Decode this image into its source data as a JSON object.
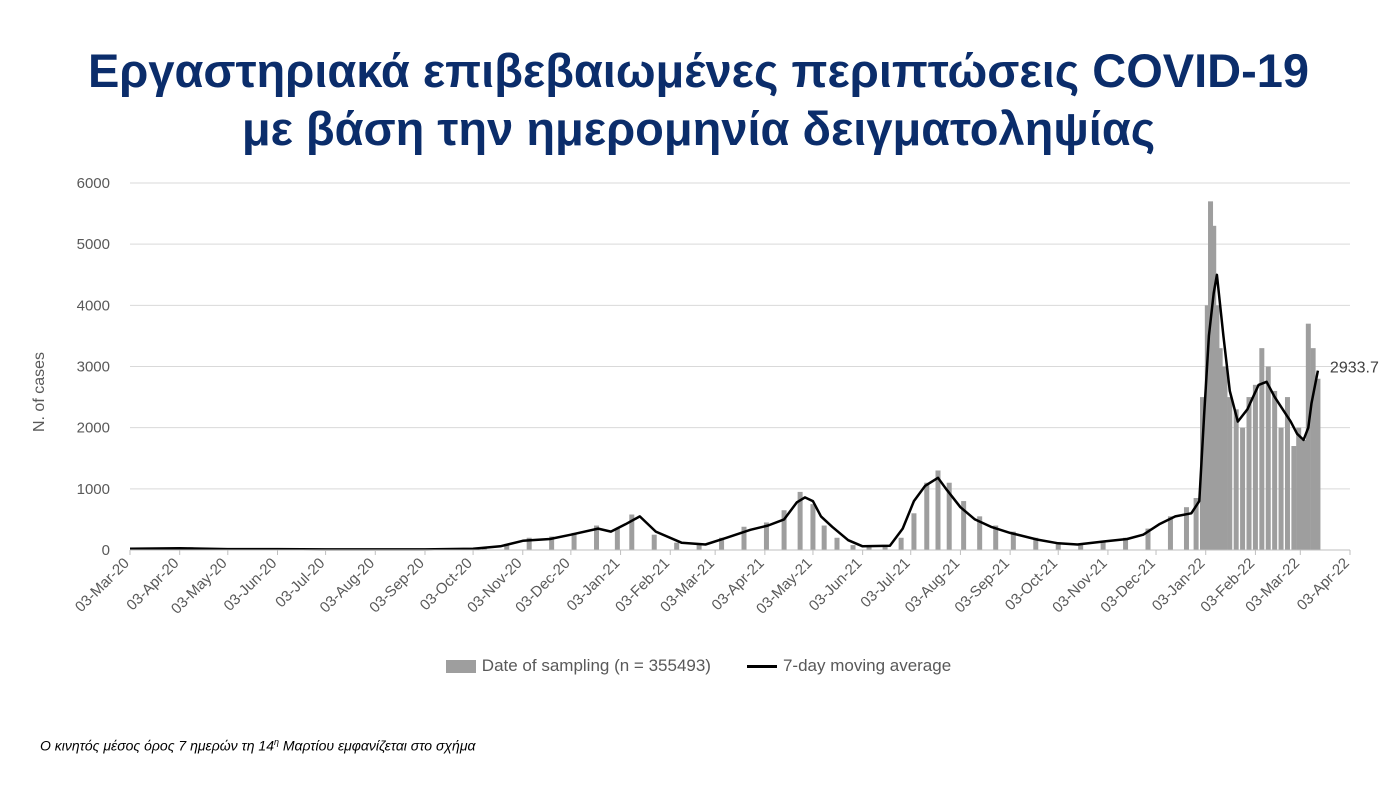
{
  "title": {
    "line1": "Εργαστηριακά επιβεβαιωμένες περιπτώσεις COVID-19",
    "line2": "με βάση την ημερομηνία δειγματοληψίας"
  },
  "footnote": {
    "before": "Ο κινητός μέσος όρος 7 ημερών τη 14",
    "sup": "η",
    "after": " Μαρτίου εμφανίζεται στο σχήμα"
  },
  "colors": {
    "title": "#0b2d6b",
    "bars": "#9e9e9e",
    "line": "#000000",
    "grid": "#d9d9d9"
  },
  "chart_data": {
    "type": "bar",
    "ylabel": "N. of cases",
    "ylim": [
      0,
      6000
    ],
    "yticks": [
      "0",
      "1000",
      "2000",
      "3000",
      "4000",
      "5000",
      "6000"
    ],
    "xlim": [
      "2020-03-03",
      "2022-04-03"
    ],
    "xticks": [
      "03-Mar-20",
      "03-Apr-20",
      "03-May-20",
      "03-Jun-20",
      "03-Jul-20",
      "03-Aug-20",
      "03-Sep-20",
      "03-Oct-20",
      "03-Nov-20",
      "03-Dec-20",
      "03-Jan-21",
      "03-Feb-21",
      "03-Mar-21",
      "03-Apr-21",
      "03-May-21",
      "03-Jun-21",
      "03-Jul-21",
      "03-Aug-21",
      "03-Sep-21",
      "03-Oct-21",
      "03-Nov-21",
      "03-Dec-21",
      "03-Jan-22",
      "03-Feb-22",
      "03-Mar-22",
      "03-Apr-22"
    ],
    "end_label": "2933.7",
    "series": [
      {
        "name": "Date of sampling (n = 355493)",
        "type": "bar",
        "x": [
          "2020-03-10",
          "2020-04-10",
          "2020-05-10",
          "2020-06-10",
          "2020-07-10",
          "2020-08-10",
          "2020-09-10",
          "2020-10-10",
          "2020-10-24",
          "2020-11-07",
          "2020-11-21",
          "2020-12-05",
          "2020-12-19",
          "2021-01-01",
          "2021-01-10",
          "2021-01-24",
          "2021-02-07",
          "2021-02-21",
          "2021-03-07",
          "2021-03-21",
          "2021-04-04",
          "2021-04-15",
          "2021-04-25",
          "2021-05-03",
          "2021-05-10",
          "2021-05-18",
          "2021-05-28",
          "2021-06-07",
          "2021-06-17",
          "2021-06-27",
          "2021-07-05",
          "2021-07-13",
          "2021-07-20",
          "2021-07-27",
          "2021-08-05",
          "2021-08-15",
          "2021-08-25",
          "2021-09-05",
          "2021-09-19",
          "2021-10-03",
          "2021-10-17",
          "2021-10-31",
          "2021-11-14",
          "2021-11-28",
          "2021-12-12",
          "2021-12-22",
          "2021-12-28",
          "2022-01-01",
          "2022-01-04",
          "2022-01-06",
          "2022-01-08",
          "2022-01-10",
          "2022-01-12",
          "2022-01-15",
          "2022-01-18",
          "2022-01-22",
          "2022-01-26",
          "2022-01-30",
          "2022-02-03",
          "2022-02-07",
          "2022-02-11",
          "2022-02-15",
          "2022-02-19",
          "2022-02-23",
          "2022-02-27",
          "2022-03-02",
          "2022-03-05",
          "2022-03-08",
          "2022-03-11",
          "2022-03-14"
        ],
        "values": [
          30,
          45,
          25,
          20,
          15,
          20,
          25,
          30,
          100,
          200,
          220,
          280,
          400,
          350,
          580,
          250,
          120,
          100,
          200,
          380,
          450,
          650,
          950,
          750,
          400,
          200,
          80,
          50,
          50,
          200,
          600,
          1100,
          1300,
          1100,
          800,
          550,
          400,
          300,
          200,
          120,
          90,
          150,
          200,
          350,
          550,
          700,
          850,
          2500,
          4000,
          5700,
          5300,
          4000,
          3300,
          3000,
          2500,
          2300,
          2000,
          2500,
          2700,
          3300,
          3000,
          2600,
          2000,
          2500,
          1700,
          2000,
          1800,
          3700,
          3300,
          2800
        ]
      },
      {
        "name": "7-day moving average",
        "type": "line",
        "x": [
          "2020-03-03",
          "2020-04-03",
          "2020-05-03",
          "2020-06-03",
          "2020-07-03",
          "2020-08-03",
          "2020-09-03",
          "2020-10-03",
          "2020-10-20",
          "2020-11-03",
          "2020-11-20",
          "2020-12-03",
          "2020-12-20",
          "2020-12-28",
          "2021-01-06",
          "2021-01-15",
          "2021-01-25",
          "2021-02-10",
          "2021-02-25",
          "2021-03-10",
          "2021-03-25",
          "2021-04-05",
          "2021-04-15",
          "2021-04-23",
          "2021-04-28",
          "2021-05-03",
          "2021-05-08",
          "2021-05-15",
          "2021-05-25",
          "2021-06-03",
          "2021-06-20",
          "2021-06-28",
          "2021-07-05",
          "2021-07-12",
          "2021-07-20",
          "2021-07-25",
          "2021-08-03",
          "2021-08-12",
          "2021-08-22",
          "2021-09-03",
          "2021-09-20",
          "2021-10-03",
          "2021-10-15",
          "2021-11-01",
          "2021-11-15",
          "2021-11-25",
          "2021-12-05",
          "2021-12-15",
          "2021-12-25",
          "2021-12-30",
          "2022-01-02",
          "2022-01-05",
          "2022-01-08",
          "2022-01-10",
          "2022-01-14",
          "2022-01-18",
          "2022-01-23",
          "2022-01-29",
          "2022-02-05",
          "2022-02-10",
          "2022-02-15",
          "2022-02-20",
          "2022-02-25",
          "2022-03-01",
          "2022-03-05",
          "2022-03-08",
          "2022-03-10",
          "2022-03-14"
        ],
        "values": [
          20,
          30,
          15,
          15,
          10,
          10,
          10,
          20,
          60,
          150,
          180,
          250,
          350,
          300,
          420,
          550,
          300,
          120,
          90,
          200,
          330,
          400,
          500,
          780,
          860,
          800,
          550,
          380,
          160,
          60,
          70,
          350,
          800,
          1050,
          1180,
          1000,
          700,
          500,
          380,
          280,
          170,
          110,
          90,
          140,
          180,
          250,
          420,
          550,
          600,
          800,
          2200,
          3500,
          4200,
          4500,
          3500,
          2600,
          2100,
          2300,
          2700,
          2750,
          2500,
          2300,
          2100,
          1900,
          1800,
          2000,
          2400,
          2933.7
        ]
      }
    ]
  }
}
